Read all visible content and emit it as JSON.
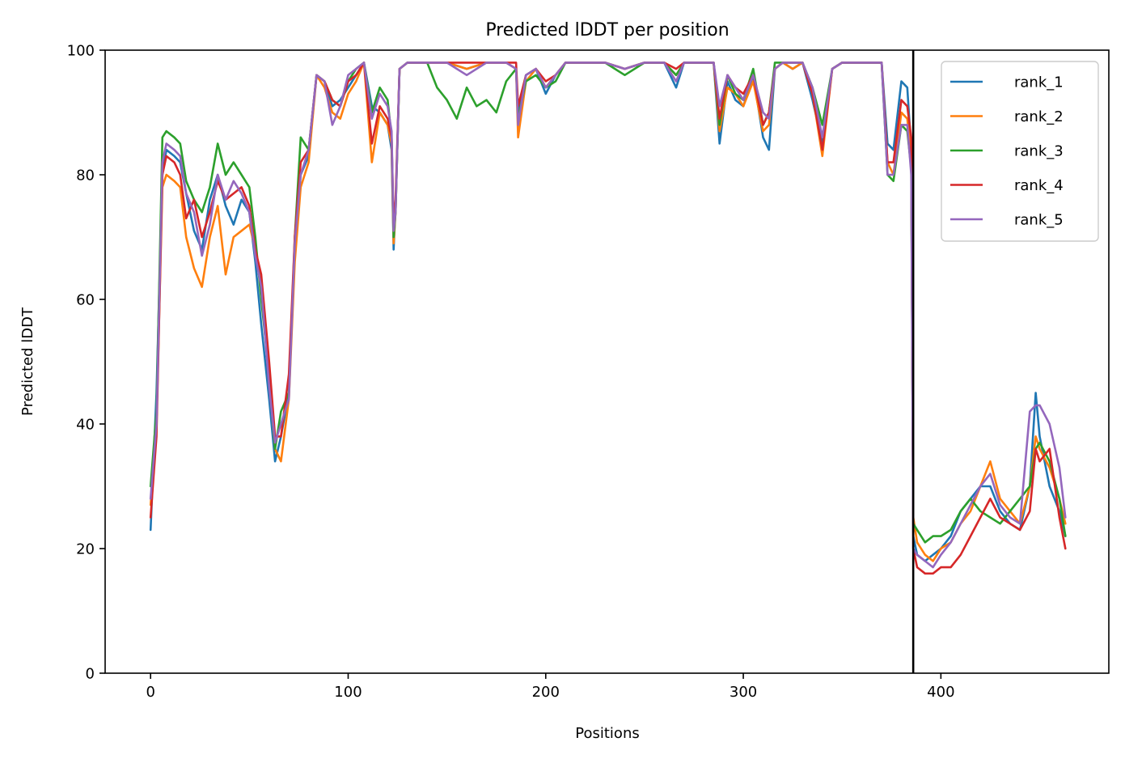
{
  "chart_data": {
    "type": "line",
    "title": "Predicted lDDT per position",
    "xlabel": "Positions",
    "ylabel": "Predicted lDDT",
    "xlim": [
      -23,
      485
    ],
    "ylim": [
      0,
      100
    ],
    "xticks": [
      0,
      100,
      200,
      300,
      400
    ],
    "yticks": [
      0,
      20,
      40,
      60,
      80,
      100
    ],
    "grid": false,
    "legend_position": "top-right",
    "vline": {
      "x": 386,
      "color": "#000000"
    },
    "series_colors": [
      "#1f77b4",
      "#ff7f0e",
      "#2ca02c",
      "#d62728",
      "#9467bd"
    ],
    "series": [
      {
        "name": "rank_1",
        "x": [
          0,
          3,
          6,
          8,
          12,
          15,
          18,
          22,
          26,
          30,
          34,
          38,
          42,
          46,
          50,
          53,
          56,
          60,
          63,
          66,
          70,
          73,
          76,
          80,
          84,
          88,
          92,
          96,
          100,
          104,
          108,
          112,
          116,
          120,
          122,
          123,
          124,
          126,
          130,
          140,
          150,
          160,
          170,
          180,
          185,
          186,
          190,
          195,
          200,
          205,
          210,
          220,
          230,
          240,
          250,
          260,
          266,
          270,
          280,
          285,
          288,
          292,
          296,
          300,
          305,
          310,
          313,
          316,
          320,
          325,
          330,
          335,
          340,
          345,
          350,
          360,
          370,
          373,
          376,
          380,
          383,
          385,
          386,
          388,
          392,
          396,
          400,
          405,
          410,
          415,
          420,
          425,
          430,
          435,
          440,
          445,
          448,
          450,
          455,
          460,
          463
        ],
        "y": [
          23,
          45,
          80,
          84,
          83,
          82,
          77,
          71,
          68,
          76,
          80,
          75,
          72,
          76,
          74,
          66,
          56,
          44,
          34,
          38,
          45,
          68,
          80,
          83,
          96,
          95,
          91,
          92,
          94,
          96,
          98,
          91,
          90,
          88,
          84,
          68,
          75,
          97,
          98,
          98,
          98,
          97,
          98,
          98,
          97,
          90,
          96,
          97,
          93,
          96,
          98,
          98,
          98,
          97,
          98,
          98,
          94,
          98,
          98,
          98,
          85,
          95,
          92,
          91,
          96,
          86,
          84,
          97,
          98,
          97,
          98,
          92,
          85,
          97,
          98,
          98,
          98,
          85,
          84,
          95,
          94,
          84,
          22,
          19,
          18,
          19,
          20,
          22,
          26,
          28,
          30,
          30,
          26,
          24,
          23,
          30,
          45,
          38,
          30,
          26,
          22
        ]
      },
      {
        "name": "rank_2",
        "x": [
          0,
          3,
          6,
          8,
          12,
          15,
          18,
          22,
          26,
          30,
          34,
          38,
          42,
          46,
          50,
          53,
          56,
          60,
          63,
          66,
          70,
          73,
          76,
          80,
          84,
          88,
          92,
          96,
          100,
          104,
          108,
          112,
          116,
          120,
          122,
          123,
          124,
          126,
          130,
          140,
          150,
          160,
          170,
          180,
          185,
          186,
          190,
          195,
          200,
          205,
          210,
          220,
          230,
          240,
          250,
          260,
          266,
          270,
          280,
          285,
          288,
          292,
          296,
          300,
          305,
          310,
          313,
          316,
          320,
          325,
          330,
          335,
          340,
          345,
          350,
          360,
          370,
          373,
          376,
          380,
          383,
          385,
          386,
          388,
          392,
          396,
          400,
          405,
          410,
          415,
          420,
          425,
          430,
          435,
          440,
          445,
          448,
          450,
          455,
          460,
          463
        ],
        "y": [
          27,
          40,
          78,
          80,
          79,
          78,
          70,
          65,
          62,
          70,
          75,
          64,
          70,
          71,
          72,
          68,
          62,
          47,
          36,
          34,
          44,
          66,
          78,
          82,
          96,
          94,
          90,
          89,
          93,
          95,
          98,
          82,
          90,
          88,
          85,
          69,
          74,
          97,
          98,
          98,
          98,
          97,
          98,
          98,
          97,
          86,
          95,
          97,
          94,
          96,
          98,
          98,
          98,
          97,
          98,
          98,
          96,
          98,
          98,
          98,
          87,
          94,
          93,
          91,
          95,
          87,
          88,
          97,
          98,
          97,
          98,
          93,
          83,
          97,
          98,
          98,
          98,
          82,
          80,
          90,
          89,
          83,
          25,
          21,
          19,
          18,
          20,
          21,
          24,
          26,
          30,
          34,
          28,
          26,
          24,
          30,
          38,
          36,
          33,
          28,
          24
        ]
      },
      {
        "name": "rank_3",
        "x": [
          0,
          3,
          6,
          8,
          12,
          15,
          18,
          22,
          26,
          30,
          34,
          38,
          42,
          46,
          50,
          53,
          56,
          60,
          63,
          66,
          70,
          73,
          76,
          80,
          84,
          88,
          92,
          96,
          100,
          104,
          108,
          112,
          116,
          120,
          122,
          123,
          124,
          126,
          130,
          140,
          145,
          150,
          155,
          160,
          165,
          170,
          175,
          180,
          185,
          186,
          190,
          195,
          200,
          205,
          210,
          220,
          230,
          240,
          250,
          260,
          266,
          270,
          280,
          285,
          288,
          292,
          296,
          300,
          305,
          310,
          313,
          316,
          320,
          325,
          330,
          335,
          340,
          345,
          350,
          360,
          370,
          373,
          376,
          380,
          383,
          385,
          386,
          388,
          392,
          396,
          400,
          405,
          410,
          415,
          420,
          425,
          430,
          435,
          440,
          445,
          448,
          450,
          455,
          460,
          463
        ],
        "y": [
          30,
          42,
          86,
          87,
          86,
          85,
          79,
          76,
          74,
          78,
          85,
          80,
          82,
          80,
          78,
          70,
          60,
          48,
          36,
          42,
          45,
          70,
          86,
          84,
          96,
          95,
          92,
          91,
          95,
          97,
          98,
          90,
          94,
          92,
          86,
          70,
          74,
          97,
          98,
          98,
          94,
          92,
          89,
          94,
          91,
          92,
          90,
          95,
          97,
          89,
          95,
          96,
          94,
          95,
          98,
          98,
          98,
          96,
          98,
          98,
          96,
          98,
          98,
          98,
          88,
          96,
          93,
          92,
          97,
          88,
          90,
          98,
          98,
          98,
          98,
          94,
          88,
          97,
          98,
          98,
          98,
          80,
          79,
          88,
          87,
          81,
          24,
          23,
          21,
          22,
          22,
          23,
          26,
          28,
          26,
          25,
          24,
          26,
          28,
          30,
          36,
          37,
          34,
          28,
          22
        ]
      },
      {
        "name": "rank_4",
        "x": [
          0,
          3,
          6,
          8,
          12,
          15,
          18,
          22,
          26,
          30,
          34,
          38,
          42,
          46,
          50,
          53,
          56,
          60,
          63,
          66,
          70,
          73,
          76,
          80,
          84,
          88,
          92,
          96,
          100,
          104,
          108,
          112,
          116,
          120,
          122,
          123,
          124,
          126,
          130,
          140,
          150,
          160,
          170,
          180,
          185,
          186,
          190,
          195,
          200,
          205,
          210,
          220,
          230,
          240,
          250,
          260,
          266,
          270,
          280,
          285,
          288,
          292,
          296,
          300,
          305,
          310,
          313,
          316,
          320,
          325,
          330,
          335,
          340,
          345,
          350,
          360,
          370,
          373,
          376,
          380,
          383,
          385,
          386,
          388,
          392,
          396,
          400,
          405,
          410,
          415,
          420,
          425,
          430,
          435,
          440,
          445,
          448,
          450,
          455,
          460,
          463
        ],
        "y": [
          25,
          38,
          80,
          83,
          82,
          80,
          73,
          76,
          70,
          74,
          79,
          76,
          77,
          78,
          75,
          68,
          64,
          50,
          38,
          38,
          48,
          70,
          82,
          84,
          96,
          95,
          92,
          91,
          95,
          96,
          98,
          85,
          91,
          89,
          86,
          72,
          76,
          97,
          98,
          98,
          98,
          98,
          98,
          98,
          98,
          91,
          96,
          97,
          95,
          96,
          98,
          98,
          98,
          97,
          98,
          98,
          97,
          98,
          98,
          98,
          89,
          96,
          94,
          93,
          96,
          88,
          90,
          97,
          98,
          98,
          98,
          93,
          84,
          97,
          98,
          98,
          98,
          82,
          82,
          92,
          91,
          86,
          20,
          17,
          16,
          16,
          17,
          17,
          19,
          22,
          25,
          28,
          25,
          24,
          23,
          26,
          36,
          34,
          36,
          25,
          20
        ]
      },
      {
        "name": "rank_5",
        "x": [
          0,
          3,
          6,
          8,
          12,
          15,
          18,
          22,
          26,
          30,
          34,
          38,
          42,
          46,
          50,
          53,
          56,
          60,
          63,
          66,
          70,
          73,
          76,
          80,
          84,
          88,
          92,
          96,
          100,
          104,
          108,
          112,
          116,
          120,
          122,
          123,
          124,
          126,
          130,
          140,
          150,
          160,
          170,
          180,
          185,
          186,
          190,
          195,
          200,
          205,
          210,
          220,
          230,
          240,
          250,
          260,
          266,
          270,
          280,
          285,
          288,
          292,
          296,
          300,
          305,
          310,
          313,
          316,
          320,
          325,
          330,
          335,
          340,
          345,
          350,
          360,
          370,
          373,
          376,
          380,
          383,
          385,
          386,
          388,
          392,
          396,
          400,
          405,
          410,
          415,
          420,
          425,
          430,
          435,
          440,
          445,
          448,
          450,
          455,
          460,
          463
        ],
        "y": [
          28,
          40,
          82,
          85,
          84,
          83,
          77,
          74,
          67,
          72,
          80,
          76,
          79,
          77,
          74,
          67,
          62,
          46,
          37,
          40,
          44,
          69,
          80,
          84,
          96,
          95,
          88,
          91,
          96,
          97,
          98,
          89,
          93,
          91,
          87,
          71,
          74,
          97,
          98,
          98,
          98,
          96,
          98,
          98,
          97,
          88,
          96,
          97,
          94,
          96,
          98,
          98,
          98,
          97,
          98,
          98,
          95,
          98,
          98,
          98,
          91,
          96,
          94,
          92,
          96,
          90,
          89,
          97,
          98,
          98,
          98,
          94,
          86,
          97,
          98,
          98,
          98,
          80,
          80,
          88,
          88,
          80,
          20,
          19,
          18,
          17,
          19,
          21,
          24,
          27,
          30,
          32,
          27,
          25,
          24,
          42,
          43,
          43,
          40,
          33,
          25
        ]
      }
    ]
  }
}
